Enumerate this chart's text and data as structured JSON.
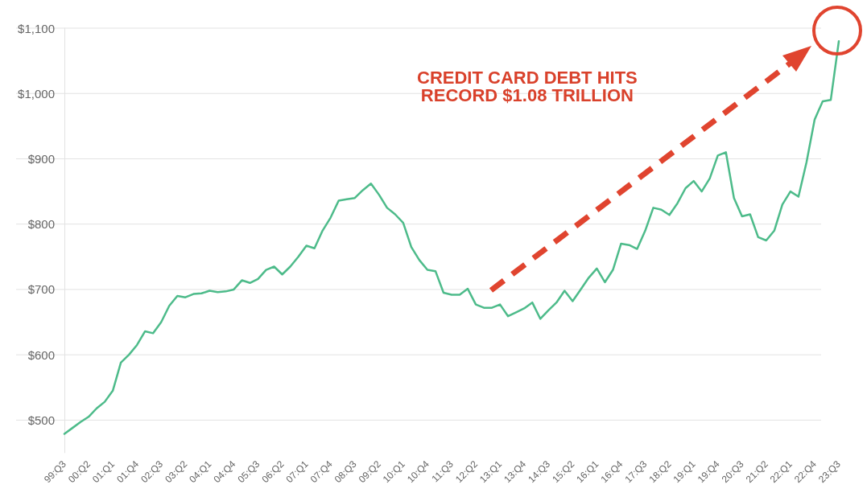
{
  "chart_data": {
    "type": "line",
    "annotations": [
      "CREDIT CARD DEBT HITS\nRECORD $1.08 TRILLION"
    ],
    "categories": [
      "99:Q3",
      null,
      null,
      "00:Q2",
      null,
      null,
      "01:Q1",
      null,
      null,
      "01:Q4",
      null,
      null,
      "02:Q3",
      null,
      null,
      "03:Q2",
      null,
      null,
      "04:Q1",
      null,
      null,
      "04:Q4",
      null,
      null,
      "05:Q3",
      null,
      null,
      "06:Q2",
      null,
      null,
      "07:Q1",
      null,
      null,
      "07:Q4",
      null,
      null,
      "08:Q3",
      null,
      null,
      "09:Q2",
      null,
      null,
      "10:Q1",
      null,
      null,
      "10:Q4",
      null,
      null,
      "11:Q3",
      null,
      null,
      "12:Q2",
      null,
      null,
      "13:Q1",
      null,
      null,
      "13:Q4",
      null,
      null,
      "14:Q3",
      null,
      null,
      "15:Q2",
      null,
      null,
      "16:Q1",
      null,
      null,
      "16:Q4",
      null,
      null,
      "17:Q3",
      null,
      null,
      "18:Q2",
      null,
      null,
      "19:Q1",
      null,
      null,
      "19:Q4",
      null,
      null,
      "20:Q3",
      null,
      null,
      "21:Q2",
      null,
      null,
      "22:Q1",
      null,
      null,
      "22:Q4",
      null,
      null,
      "23:Q3"
    ],
    "series": [
      {
        "color": "#4dbb8a",
        "values": [
          479,
          488,
          497,
          505,
          518,
          528,
          545,
          588,
          600,
          615,
          636,
          633,
          650,
          675,
          690,
          688,
          693,
          694,
          698,
          696,
          697,
          700,
          714,
          710,
          716,
          730,
          735,
          723,
          735,
          750,
          767,
          763,
          790,
          810,
          836,
          838,
          840,
          852,
          862,
          845,
          825,
          815,
          802,
          765,
          745,
          730,
          728,
          695,
          692,
          692,
          701,
          677,
          672,
          672,
          677,
          659,
          665,
          671,
          680,
          655,
          668,
          680,
          698,
          682,
          700,
          718,
          732,
          711,
          730,
          770,
          768,
          762,
          790,
          825,
          822,
          814,
          832,
          855,
          866,
          850,
          870,
          905,
          910,
          840,
          812,
          815,
          780,
          775,
          790,
          830,
          850,
          842,
          895,
          960,
          988,
          990,
          1080
        ]
      }
    ],
    "ylim": [
      450,
      1100
    ],
    "yticks": [
      {
        "value": 500,
        "label": "$500"
      },
      {
        "value": 600,
        "label": "$600"
      },
      {
        "value": 700,
        "label": "$700"
      },
      {
        "value": 800,
        "label": "$800"
      },
      {
        "value": 900,
        "label": "$900"
      },
      {
        "value": 1000,
        "label": "$1,000"
      },
      {
        "value": 1100,
        "label": "$1,100"
      }
    ],
    "grid": "y",
    "marker": "none",
    "line_style": "solid"
  }
}
